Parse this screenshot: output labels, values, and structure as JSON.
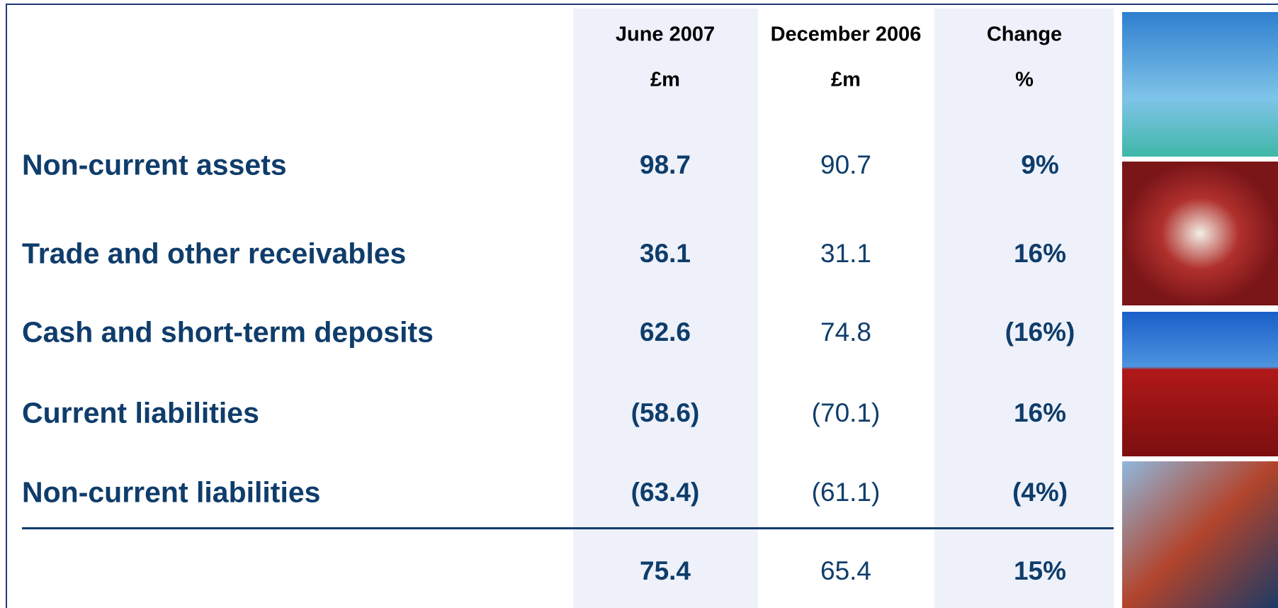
{
  "table": {
    "columns": [
      {
        "title": "June 2007",
        "unit": "£m"
      },
      {
        "title": "December 2006",
        "unit": "£m"
      },
      {
        "title": "Change",
        "unit": "%"
      }
    ],
    "rows": [
      {
        "label": "Non-current assets",
        "cells": [
          "98.7",
          "90.7",
          "9%"
        ]
      },
      {
        "label": "Trade and other receivables",
        "cells": [
          "36.1",
          "31.1",
          "16%"
        ]
      },
      {
        "label": "Cash and short-term deposits",
        "cells": [
          "62.6",
          "74.8",
          "(16%)"
        ]
      },
      {
        "label": "Current liabilities",
        "cells": [
          "(58.6)",
          "(70.1)",
          "16%"
        ]
      },
      {
        "label": "Non-current liabilities",
        "cells": [
          "(63.4)",
          "(61.1)",
          "(4%)"
        ]
      }
    ],
    "total": {
      "cells": [
        "75.4",
        "65.4",
        "15%"
      ]
    }
  }
}
